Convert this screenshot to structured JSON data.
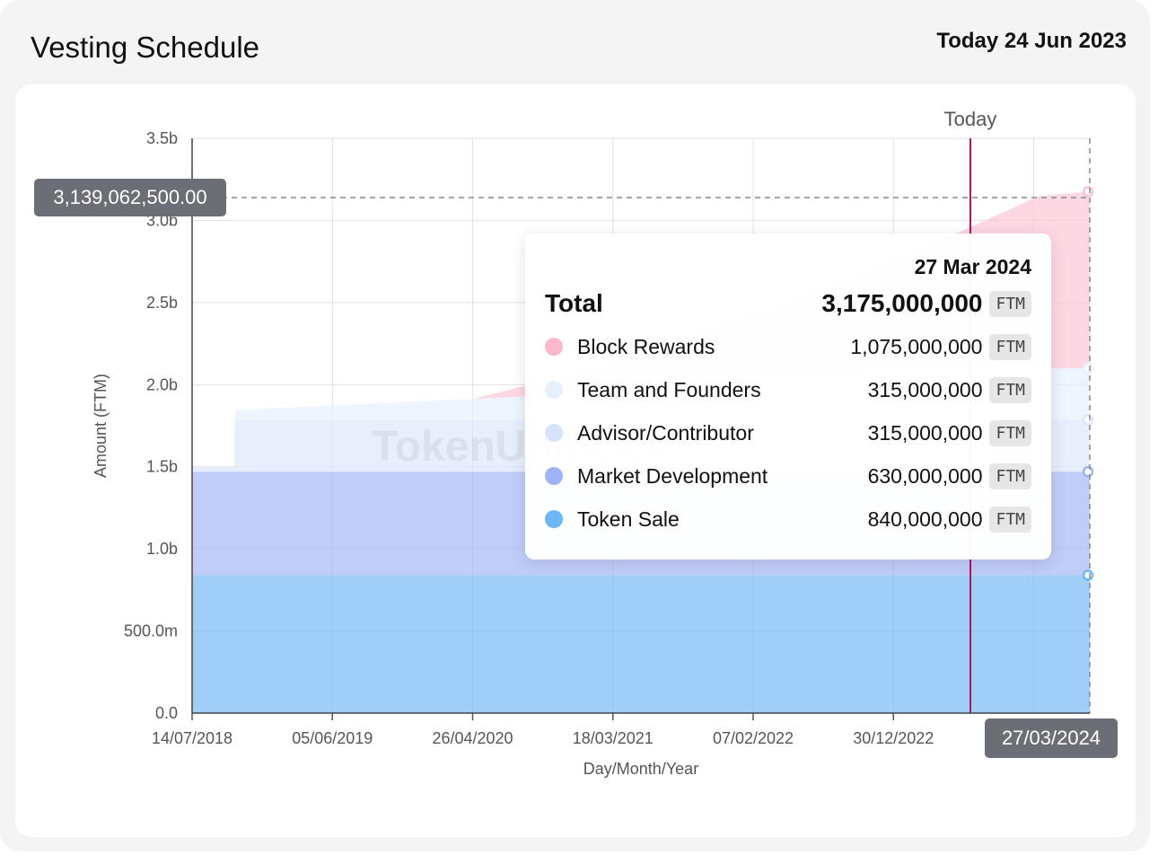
{
  "header": {
    "title": "Vesting Schedule",
    "today_label": "Today 24 Jun 2023"
  },
  "watermark": "TokenUnlocks",
  "chart_data": {
    "type": "area",
    "stacked": true,
    "xlabel": "Day/Month/Year",
    "ylabel": "Amount (FTM)",
    "ylim": [
      0,
      3500000000
    ],
    "y_ticks": [
      "0.0",
      "500.0m",
      "1.0b",
      "1.5b",
      "2.0b",
      "2.5b",
      "3.0b",
      "3.5b"
    ],
    "x_ticks": [
      "14/07/2018",
      "05/06/2019",
      "26/04/2020",
      "18/03/2021",
      "07/02/2022",
      "30/12/2022"
    ],
    "x_range": [
      "2018-07-14",
      "2024-03-27"
    ],
    "today_marker": {
      "label": "Today",
      "date": "2023-06-24"
    },
    "hover": {
      "x_label": "27/03/2024",
      "y_label": "3,139,062,500.00"
    },
    "series": [
      {
        "name": "Token Sale",
        "color": "#6bb6f5",
        "points": [
          [
            "2018-07-14",
            840000000
          ],
          [
            "2024-03-27",
            840000000
          ]
        ]
      },
      {
        "name": "Market Development",
        "color": "#9fb2f6",
        "points": [
          [
            "2018-07-14",
            630000000
          ],
          [
            "2024-03-27",
            630000000
          ]
        ]
      },
      {
        "name": "Advisor/Contributor",
        "color": "#dbe6fb",
        "points": [
          [
            "2018-07-14",
            30000000
          ],
          [
            "2018-10-20",
            30000000
          ],
          [
            "2018-10-21",
            315000000
          ],
          [
            "2024-03-27",
            315000000
          ]
        ]
      },
      {
        "name": "Team and Founders",
        "color": "#e6f0fd",
        "points": [
          [
            "2018-07-14",
            0
          ],
          [
            "2018-10-20",
            0
          ],
          [
            "2018-10-21",
            60000000
          ],
          [
            "2020-08-01",
            140000000
          ],
          [
            "2021-01-01",
            165000000
          ],
          [
            "2022-12-30",
            315000000
          ],
          [
            "2024-03-27",
            315000000
          ]
        ]
      },
      {
        "name": "Block Rewards",
        "color": "#fcc3d4",
        "points": [
          [
            "2018-07-14",
            0
          ],
          [
            "2020-04-26",
            0
          ],
          [
            "2021-06-01",
            215000000
          ],
          [
            "2022-12-30",
            650000000
          ],
          [
            "2023-12-01",
            1050000000
          ],
          [
            "2024-03-27",
            1075000000
          ]
        ]
      }
    ],
    "tooltip": {
      "date": "27 Mar 2024",
      "total_label": "Total",
      "total_value": "3,175,000,000",
      "unit": "FTM",
      "rows": [
        {
          "name": "Block Rewards",
          "value": "1,075,000,000",
          "color": "#fcb8cb"
        },
        {
          "name": "Team and Founders",
          "value": "315,000,000",
          "color": "#e6f0fd"
        },
        {
          "name": "Advisor/Contributor",
          "value": "315,000,000",
          "color": "#d6e3fb"
        },
        {
          "name": "Market Development",
          "value": "630,000,000",
          "color": "#9fb2f6"
        },
        {
          "name": "Token Sale",
          "value": "840,000,000",
          "color": "#6bb6f5"
        }
      ]
    }
  }
}
